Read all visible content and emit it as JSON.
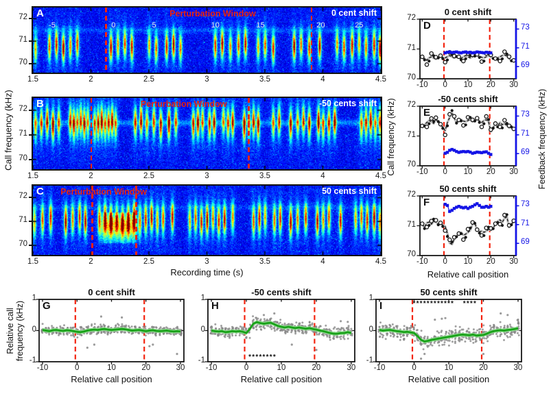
{
  "labels": {
    "spectro_ylabel": "Call frequency (kHz)",
    "spectro_xlabel": "Recording time (s)",
    "def_ylabel_left": "Call frequency (kHz)",
    "def_ylabel_right": "Feedback frequency (kHz)",
    "def_xlabel": "Relative call position",
    "ghi_ylabel_line1": "Relative call",
    "ghi_ylabel_line2": "frequency (kHz)",
    "ghi_xlabel": "Relative call position"
  },
  "colors": {
    "perturbation_line": "#f3230e",
    "annotation_red": "#e8230e",
    "feedback_blue": "#1414e6",
    "mean_gray": "#c6c6c6",
    "call_black": "#161616",
    "green_line": "#18a018",
    "green_band": "#8be08b",
    "scatter_gray": "#8a8a8a",
    "spectrogram_background_blue": "#1a2acc",
    "white_text": "#ffffff"
  },
  "chart_data": [
    {
      "id": "A",
      "type": "heatmap",
      "panel_label": "A",
      "shift_label": "0 cent shift",
      "annotation": "Perturbation Window",
      "annotation_center_t": 3.05,
      "xlim": [
        1.5,
        4.5
      ],
      "ylim_khz": [
        69.6,
        72.5
      ],
      "xticks": [
        1.5,
        2,
        2.5,
        3,
        3.5,
        4,
        4.5
      ],
      "yticks": [
        72,
        71,
        70
      ],
      "perturbation_window_s": [
        2.13,
        3.9
      ],
      "call_center_khz": 70.8,
      "band_khz": 71.5,
      "band_strength": 0.09,
      "seed": 11,
      "call_times_s": [
        1.52,
        1.64,
        1.7,
        1.76,
        1.82,
        1.88,
        2.17,
        2.23,
        2.29,
        2.35,
        2.5,
        2.56,
        2.65,
        2.71,
        2.77,
        3.07,
        3.13,
        3.2,
        3.27,
        3.33,
        3.44,
        3.5,
        3.57,
        3.75,
        3.81,
        3.88,
        3.97,
        4.12,
        4.18,
        4.25,
        4.31,
        4.37,
        4.44,
        4.49
      ],
      "call_position_labels": [
        {
          "pos": "-5",
          "t": 1.66
        },
        {
          "pos": "0",
          "t": 2.2
        },
        {
          "pos": "5",
          "t": 2.55
        },
        {
          "pos": "10",
          "t": 3.06
        },
        {
          "pos": "15",
          "t": 3.45
        },
        {
          "pos": "20",
          "t": 3.97
        },
        {
          "pos": "25",
          "t": 4.3
        }
      ]
    },
    {
      "id": "B",
      "type": "heatmap",
      "panel_label": "B",
      "shift_label": "-50 cents shift",
      "annotation": "Perturbation Window",
      "annotation_center_t": 2.8,
      "xlim": [
        1.5,
        4.5
      ],
      "ylim_khz": [
        69.6,
        72.5
      ],
      "xticks": [
        1.5,
        2,
        2.5,
        3,
        3.5,
        4,
        4.5
      ],
      "yticks": [
        72,
        71,
        70
      ],
      "perturbation_window_s": [
        2.0,
        3.36
      ],
      "call_center_khz": 71.5,
      "band_khz": 71.5,
      "band_strength": 0.16,
      "seed": 22,
      "call_times_s": [
        1.52,
        1.57,
        1.62,
        1.67,
        1.72,
        1.82,
        1.85,
        1.88,
        1.91,
        1.94,
        1.97,
        2.03,
        2.06,
        2.09,
        2.12,
        2.15,
        2.18,
        2.21,
        2.38,
        2.43,
        2.48,
        2.54,
        2.6,
        2.67,
        2.73,
        2.88,
        2.92,
        2.96,
        3.02,
        3.06,
        3.14,
        3.18,
        3.22,
        3.32,
        3.36,
        3.4,
        3.44,
        3.57,
        3.62,
        3.72,
        3.78,
        3.83,
        3.88,
        3.96,
        4.0,
        4.05,
        4.1,
        4.33,
        4.37,
        4.41,
        4.45,
        4.49
      ],
      "call_position_labels": []
    },
    {
      "id": "C",
      "type": "heatmap",
      "panel_label": "C",
      "shift_label": "50 cents shift",
      "annotation": "Perturbation Window",
      "annotation_center_t": 2.11,
      "xlim": [
        1.5,
        4.5
      ],
      "ylim_khz": [
        69.6,
        72.5
      ],
      "xticks": [
        1.5,
        2,
        2.5,
        3,
        3.5,
        4,
        4.5
      ],
      "yticks": [
        72,
        71,
        70
      ],
      "perturbation_window_s": [
        2.01,
        2.39
      ],
      "call_center_khz": 71.1,
      "band_khz": 71.6,
      "band_strength": 0.07,
      "seed": 33,
      "noise_blob": {
        "t": [
          2.05,
          2.42
        ],
        "khz": [
          70.1,
          71.4
        ]
      },
      "call_times_s": [
        1.51,
        1.58,
        1.65,
        1.78,
        1.84,
        1.9,
        1.95,
        2.07,
        2.12,
        2.17,
        2.22,
        2.27,
        2.32,
        2.37,
        2.42,
        2.47,
        2.52,
        2.57,
        2.62,
        2.7,
        2.85,
        2.9,
        2.95,
        3.0,
        3.05,
        3.1,
        3.15,
        3.22,
        3.4,
        3.45,
        3.5,
        3.58,
        3.63,
        3.72,
        3.78,
        3.85,
        3.95,
        4.0,
        4.05,
        4.15,
        4.28,
        4.33,
        4.38,
        4.44,
        4.49
      ],
      "call_position_labels": []
    },
    {
      "id": "D",
      "type": "line",
      "panel_label": "D",
      "title": "0 cent shift",
      "x_start": -10,
      "x_step": 1,
      "left_ylim": [
        70,
        72
      ],
      "left_yticks": [
        72,
        71,
        70
      ],
      "right_ylim": [
        67.7,
        74.05
      ],
      "right_yticks": [
        73,
        71,
        69
      ],
      "xticks": [
        -10,
        0,
        10,
        20,
        30
      ],
      "window": [
        -0.5,
        19.5
      ],
      "feedback_x_start": 0,
      "call_mean_khz": [
        70.72,
        70.68,
        70.62,
        70.7,
        70.74,
        70.7,
        70.66,
        70.72,
        70.76,
        70.72,
        70.7,
        70.74,
        70.78,
        70.74,
        70.7,
        70.76,
        70.72,
        70.68,
        70.74,
        70.78,
        70.74,
        70.7,
        70.74,
        70.78,
        70.8,
        70.76,
        70.72,
        70.7,
        70.74,
        70.78,
        70.74,
        70.7,
        70.66,
        70.7,
        70.74,
        70.78,
        70.8,
        70.76,
        70.68,
        70.62,
        70.6
      ],
      "feedback_khz": [
        70.87,
        70.89,
        70.9,
        70.88,
        70.89,
        70.9,
        70.88,
        70.87,
        70.89,
        70.9,
        70.88,
        70.89,
        70.87,
        70.88,
        70.9,
        70.89,
        70.88,
        70.87,
        70.89,
        70.88,
        70.87
      ]
    },
    {
      "id": "E",
      "type": "line",
      "panel_label": "E",
      "title": "-50 cents shift",
      "x_start": -10,
      "x_step": 1,
      "left_ylim": [
        70,
        72
      ],
      "left_yticks": [
        72,
        71,
        70
      ],
      "right_ylim": [
        67.7,
        74.05
      ],
      "right_yticks": [
        73,
        71,
        69
      ],
      "xticks": [
        -10,
        0,
        10,
        20,
        30
      ],
      "window": [
        -0.5,
        19.5
      ],
      "feedback_x_start": 0,
      "call_mean_khz": [
        71.32,
        71.38,
        71.45,
        71.52,
        71.48,
        71.42,
        71.55,
        71.5,
        71.38,
        71.3,
        71.18,
        71.45,
        71.62,
        71.78,
        71.6,
        71.45,
        71.52,
        71.55,
        71.5,
        71.48,
        71.52,
        71.55,
        71.48,
        71.52,
        71.58,
        71.5,
        71.45,
        71.52,
        71.55,
        71.48,
        71.15,
        71.28,
        71.4,
        71.35,
        71.45,
        71.38,
        71.42,
        71.35,
        71.28,
        71.32,
        71.22
      ],
      "feedback_khz": [
        70.42,
        70.45,
        70.52,
        70.55,
        70.52,
        70.48,
        70.45,
        70.47,
        70.48,
        70.47,
        70.48,
        70.46,
        70.42,
        70.44,
        70.46,
        70.45,
        70.44,
        70.46,
        70.47,
        70.42,
        70.38
      ]
    },
    {
      "id": "F",
      "type": "line",
      "panel_label": "F",
      "title": "50 cents shift",
      "x_start": -10,
      "x_step": 1,
      "left_ylim": [
        70,
        72
      ],
      "left_yticks": [
        72,
        71,
        70
      ],
      "right_ylim": [
        67.7,
        74.05
      ],
      "right_yticks": [
        73,
        71,
        69
      ],
      "xticks": [
        -10,
        0,
        10,
        20,
        30
      ],
      "window": [
        -0.5,
        19.5
      ],
      "feedback_x_start": 0,
      "call_mean_khz": [
        71.05,
        70.95,
        71.1,
        71.12,
        71.05,
        71.15,
        71.12,
        71.05,
        71.08,
        71.02,
        70.98,
        70.75,
        70.42,
        70.38,
        70.55,
        70.65,
        70.72,
        70.78,
        70.68,
        70.72,
        70.78,
        70.85,
        71.05,
        71.1,
        70.85,
        70.8,
        70.82,
        70.78,
        70.82,
        70.88,
        70.85,
        70.92,
        71.05,
        71.15,
        71.2,
        71.12,
        71.25,
        71.3,
        70.95,
        71.05,
        71.15
      ],
      "feedback_khz": [
        71.72,
        71.68,
        71.48,
        71.52,
        71.58,
        71.62,
        71.65,
        71.62,
        71.6,
        71.62,
        71.58,
        71.62,
        71.65,
        71.7,
        71.74,
        71.68,
        71.62,
        71.62,
        71.65,
        71.62,
        71.65
      ]
    },
    {
      "id": "G",
      "type": "scatter_line",
      "panel_label": "G",
      "title": "0 cent shift",
      "x_start": -10,
      "x_step": 1,
      "ylim": [
        -1,
        1
      ],
      "yticks": [
        1,
        0,
        -1
      ],
      "xticks": [
        -10,
        0,
        10,
        20,
        30
      ],
      "window": [
        -0.5,
        19.5
      ],
      "band_halfwidth": 0.06,
      "scatter_spread": 0.13,
      "dots_per_position": 13,
      "seed": 7,
      "mean_khz": [
        0.02,
        0.0,
        -0.02,
        0.01,
        0.02,
        0.0,
        -0.01,
        0.01,
        0.0,
        -0.02,
        -0.04,
        -0.05,
        -0.03,
        0.0,
        0.02,
        0.03,
        0.02,
        0.04,
        0.05,
        0.03,
        0.02,
        0.03,
        0.04,
        0.05,
        0.04,
        0.02,
        0.0,
        0.01,
        0.02,
        0.0,
        -0.02,
        0.0,
        0.01,
        -0.01,
        -0.02,
        -0.01,
        0.0,
        -0.02,
        -0.03,
        -0.02,
        -0.03
      ],
      "outliers": [
        [
          3,
          -0.55
        ],
        [
          5,
          -0.45
        ],
        [
          7,
          0.45
        ],
        [
          13,
          0.42
        ],
        [
          21,
          -0.5
        ],
        [
          22,
          -0.45
        ],
        [
          29,
          -0.75
        ]
      ],
      "significance": []
    },
    {
      "id": "H",
      "type": "scatter_line",
      "panel_label": "H",
      "title": "-50 cents shift",
      "x_start": -10,
      "x_step": 1,
      "ylim": [
        -1,
        1
      ],
      "yticks": [
        1,
        0,
        -1
      ],
      "xticks": [
        -10,
        0,
        10,
        20,
        30
      ],
      "window": [
        -0.5,
        19.5
      ],
      "band_halfwidth": 0.06,
      "scatter_spread": 0.17,
      "dots_per_position": 13,
      "seed": 8,
      "mean_khz": [
        0.0,
        -0.02,
        -0.03,
        -0.02,
        -0.05,
        -0.04,
        -0.02,
        -0.03,
        -0.02,
        -0.04,
        -0.08,
        0.05,
        0.22,
        0.27,
        0.24,
        0.22,
        0.24,
        0.25,
        0.2,
        0.15,
        0.12,
        0.1,
        0.12,
        0.1,
        0.08,
        0.1,
        0.08,
        0.06,
        0.08,
        0.05,
        0.03,
        0.0,
        -0.02,
        -0.05,
        -0.08,
        -0.1,
        -0.1,
        -0.08,
        -0.08,
        -0.05,
        -0.08
      ],
      "outliers": [
        [
          5,
          0.5
        ],
        [
          8,
          0.55
        ],
        [
          13,
          -0.45
        ],
        [
          20,
          -0.62
        ],
        [
          27,
          0.3
        ],
        [
          29,
          0.28
        ]
      ],
      "significance": [
        {
          "x_from": 1,
          "x_to": 8,
          "count": 8,
          "y": -0.85,
          "symbol": "*"
        }
      ]
    },
    {
      "id": "I",
      "type": "scatter_line",
      "panel_label": "I",
      "title": "50 cents shift",
      "x_start": -10,
      "x_step": 1,
      "ylim": [
        -1,
        1
      ],
      "yticks": [
        1,
        0,
        -1
      ],
      "xticks": [
        -10,
        0,
        10,
        20,
        30
      ],
      "window": [
        -0.5,
        19.5
      ],
      "band_halfwidth": 0.06,
      "scatter_spread": 0.2,
      "dots_per_position": 13,
      "seed": 9,
      "mean_khz": [
        0.02,
        0.0,
        0.01,
        0.02,
        0.0,
        -0.02,
        -0.03,
        -0.05,
        -0.04,
        -0.06,
        -0.08,
        -0.18,
        -0.3,
        -0.35,
        -0.33,
        -0.3,
        -0.28,
        -0.26,
        -0.24,
        -0.22,
        -0.2,
        -0.18,
        -0.16,
        -0.14,
        -0.13,
        -0.14,
        -0.15,
        -0.13,
        -0.16,
        -0.15,
        -0.14,
        -0.1,
        -0.05,
        -0.02,
        0.0,
        0.01,
        0.0,
        0.02,
        0.03,
        0.05,
        0.07
      ],
      "outliers": [
        [
          2,
          -0.9
        ],
        [
          3,
          -0.75
        ],
        [
          6,
          0.35
        ],
        [
          8,
          0.38
        ],
        [
          9,
          0.4
        ],
        [
          20,
          -0.75
        ],
        [
          25,
          0.55
        ],
        [
          27,
          0.5
        ],
        [
          30,
          0.35
        ]
      ],
      "significance": [
        {
          "x_from": 0,
          "x_to": 11,
          "count": 12,
          "y": 0.87,
          "symbol": "*"
        },
        {
          "x_from": 14.5,
          "x_to": 17.5,
          "count": 4,
          "y": 0.87,
          "symbol": "*"
        }
      ]
    }
  ]
}
